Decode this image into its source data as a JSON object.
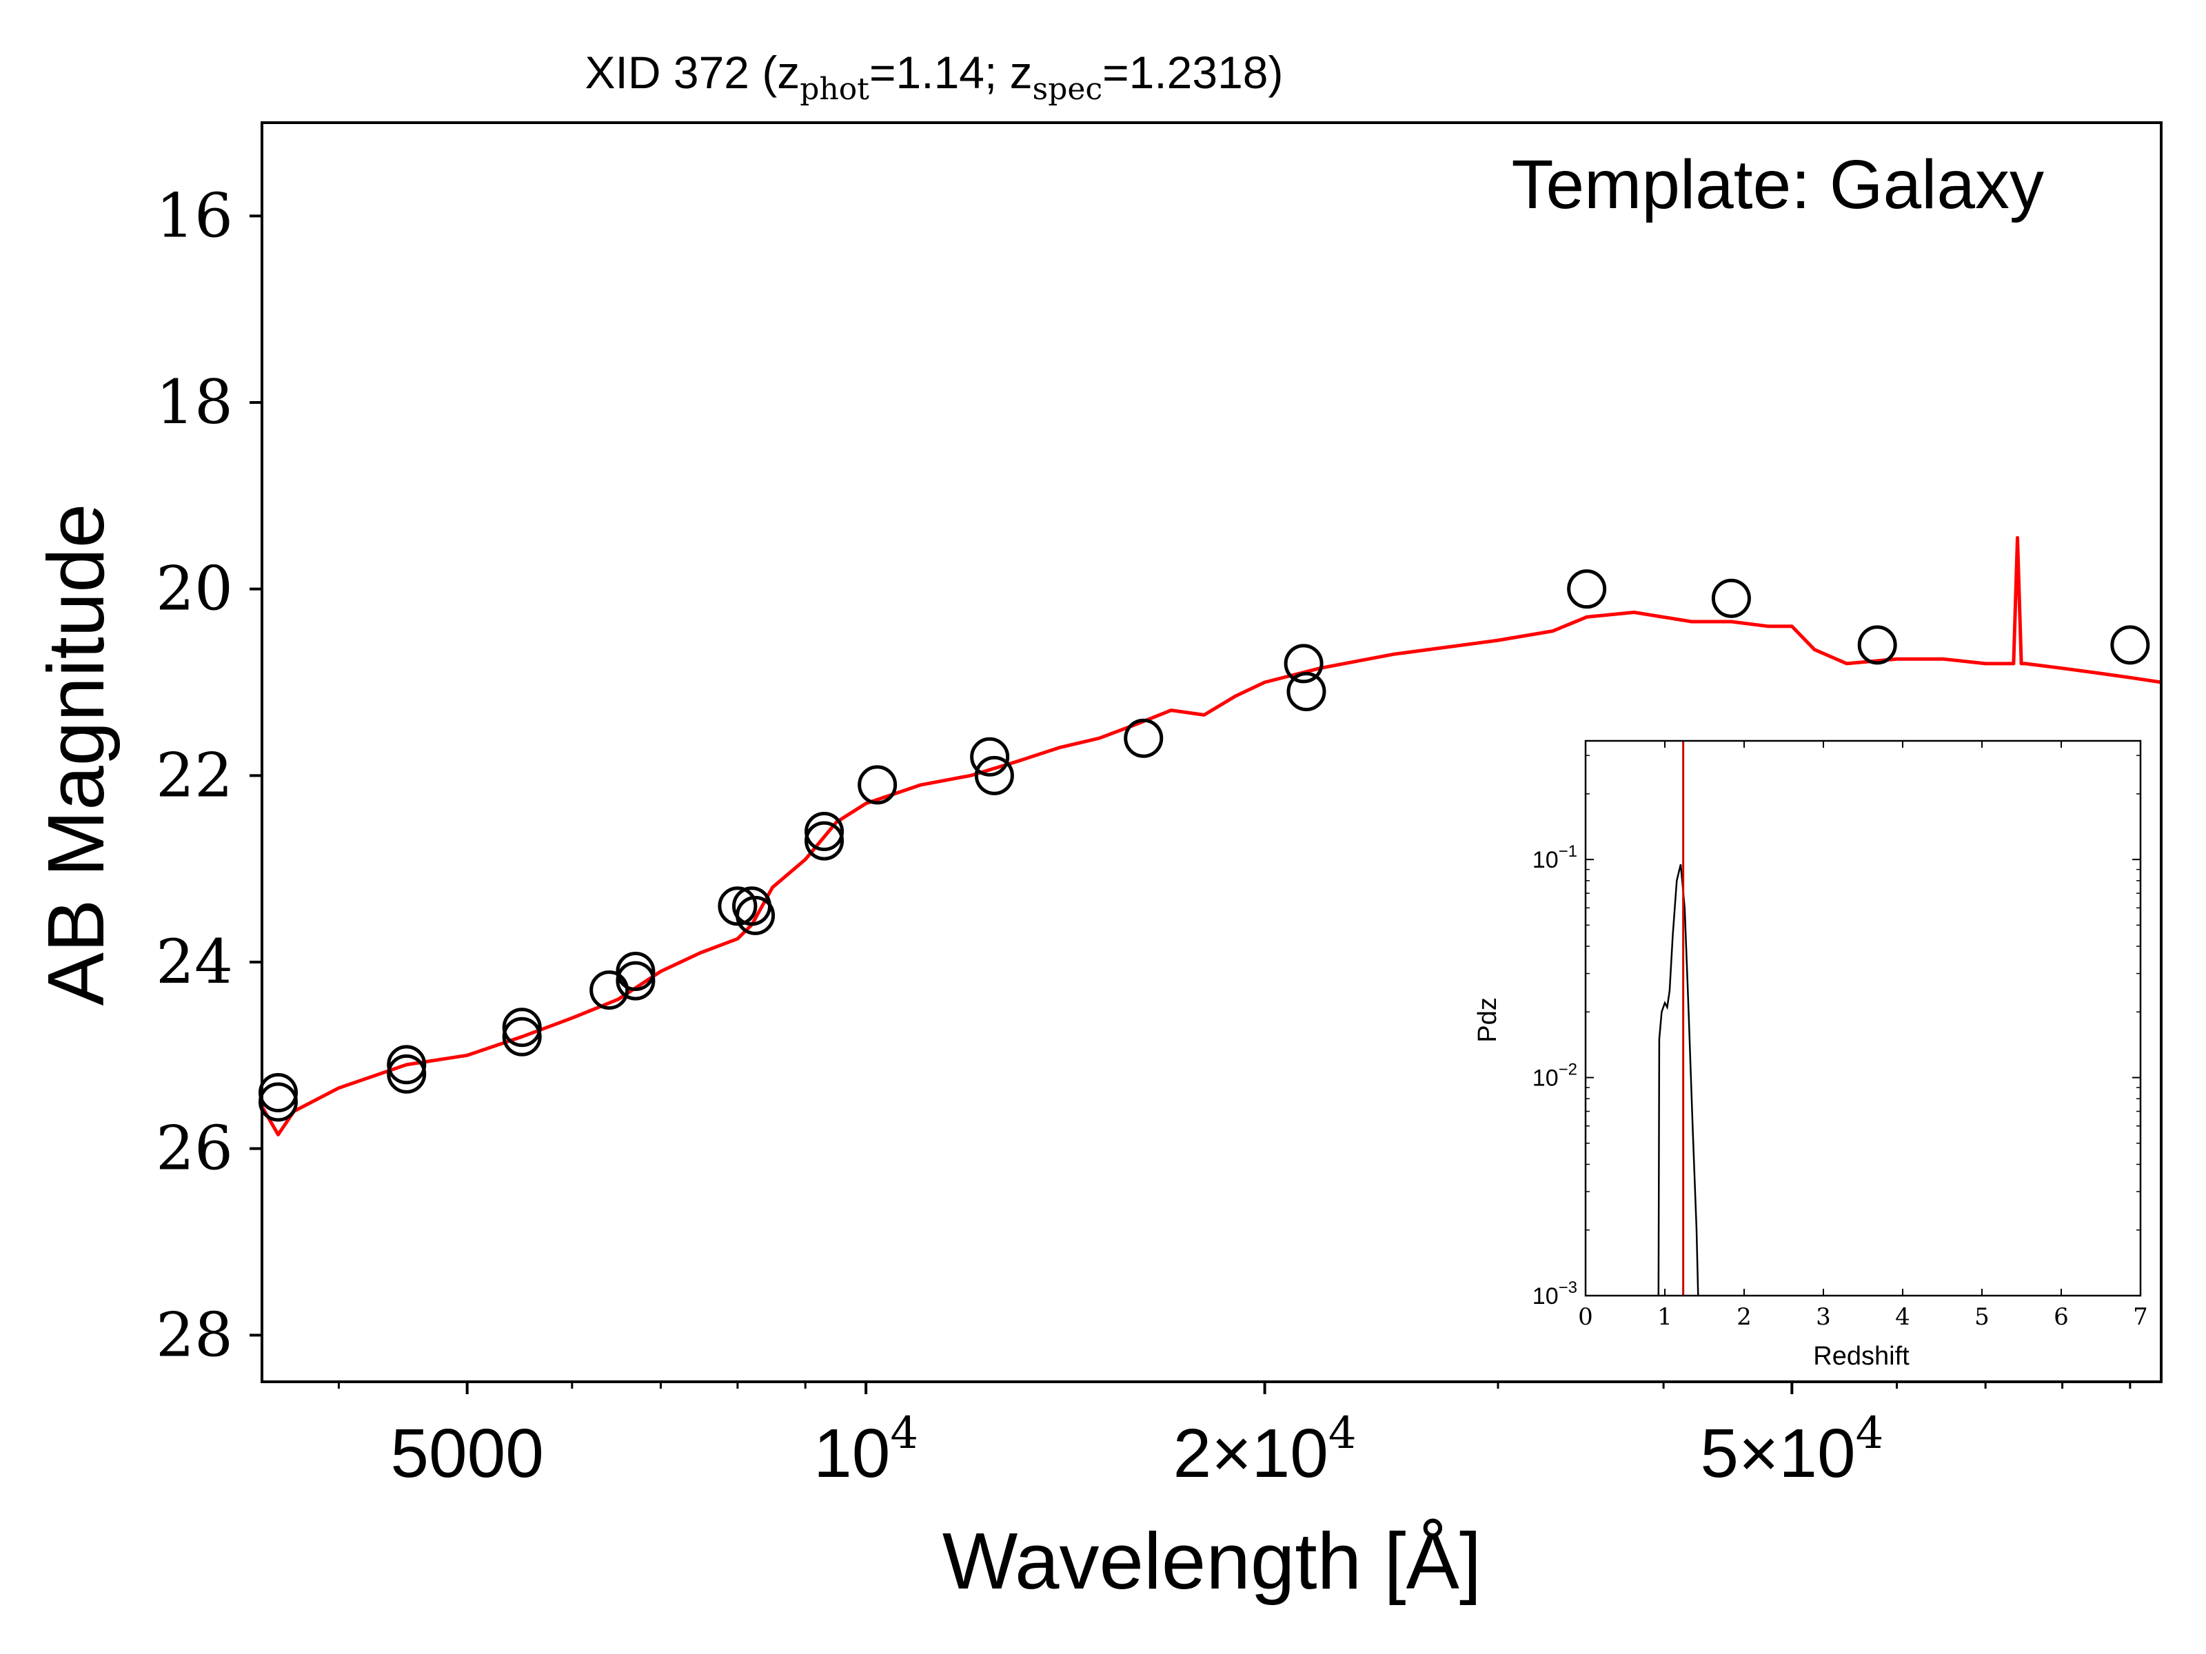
{
  "chart_data": [
    {
      "type": "scatter",
      "title_prefix": "XID 372 (z",
      "title_sub1": "phot",
      "title_mid": "=1.14; z",
      "title_sub2": "spec",
      "title_suffix": "=1.2318)",
      "annotation": "Template: Galaxy",
      "xlabel": "Wavelength [Å]",
      "ylabel": "AB Magnitude",
      "xscale": "log",
      "xlim": [
        3500,
        95000
      ],
      "ylim": [
        28.5,
        15
      ],
      "y_inverted": true,
      "x_ticks": [
        {
          "value": 5000,
          "main": "5000",
          "exp": ""
        },
        {
          "value": 10000,
          "main": "10",
          "exp": "4"
        },
        {
          "value": 20000,
          "main": "2×10",
          "exp": "4"
        },
        {
          "value": 50000,
          "main": "5×10",
          "exp": "4"
        }
      ],
      "x_minor_ticks": [
        4000,
        6000,
        7000,
        8000,
        9000,
        30000,
        40000,
        60000,
        70000,
        80000,
        90000
      ],
      "y_ticks": [
        "16",
        "18",
        "20",
        "22",
        "24",
        "26",
        "28"
      ],
      "series": [
        {
          "name": "",
          "type": "scatter",
          "marker": "open-circle",
          "color": "#000000",
          "x": [
            3600,
            3600,
            4500,
            4500,
            5500,
            5500,
            6400,
            6700,
            6700,
            8000,
            8200,
            8250,
            9300,
            9300,
            10200,
            12400,
            12500,
            16200,
            21400,
            21500,
            35000,
            45000,
            58000,
            90000
          ],
          "y": [
            25.4,
            25.5,
            25.1,
            25.2,
            24.7,
            24.8,
            24.3,
            24.1,
            24.2,
            23.4,
            23.4,
            23.5,
            22.6,
            22.7,
            22.1,
            21.8,
            22.0,
            21.6,
            20.8,
            21.1,
            20.0,
            20.1,
            20.6,
            20.6
          ]
        },
        {
          "name": "",
          "type": "line",
          "color": "#ff0000",
          "x": [
            3500,
            3600,
            3700,
            4000,
            4500,
            5000,
            5500,
            6000,
            6500,
            7000,
            7500,
            8000,
            8200,
            8500,
            9000,
            9500,
            10000,
            11000,
            12000,
            13000,
            14000,
            15000,
            16000,
            17000,
            18000,
            19000,
            20000,
            22000,
            25000,
            30000,
            33000,
            35000,
            38000,
            42000,
            45000,
            48000,
            50000,
            52000,
            55000,
            60000,
            65000,
            70000,
            73500,
            74000,
            74500,
            75000,
            80000,
            85000,
            90000,
            95000
          ],
          "y": [
            25.55,
            25.85,
            25.6,
            25.35,
            25.1,
            25.0,
            24.8,
            24.6,
            24.4,
            24.1,
            23.9,
            23.75,
            23.6,
            23.2,
            22.9,
            22.5,
            22.3,
            22.1,
            22.0,
            21.85,
            21.7,
            21.6,
            21.45,
            21.3,
            21.35,
            21.15,
            21.0,
            20.85,
            20.7,
            20.55,
            20.45,
            20.3,
            20.25,
            20.35,
            20.35,
            20.4,
            20.4,
            20.65,
            20.8,
            20.75,
            20.75,
            20.8,
            20.8,
            19.45,
            20.8,
            20.8,
            20.85,
            20.9,
            20.95,
            21.0
          ]
        }
      ]
    },
    {
      "type": "line",
      "title": "",
      "xlabel": "Redshift",
      "ylabel": "Pdz",
      "yscale": "log",
      "xlim": [
        0,
        7
      ],
      "ylim": [
        0.001,
        0.35
      ],
      "x_ticks": [
        "0",
        "1",
        "2",
        "3",
        "4",
        "5",
        "6",
        "7"
      ],
      "y_ticks": [
        {
          "value": 0.1,
          "main": "10",
          "exp": "−1"
        },
        {
          "value": 0.01,
          "main": "10",
          "exp": "−2"
        },
        {
          "value": 0.001,
          "main": "10",
          "exp": "−3"
        }
      ],
      "vline": {
        "x": 1.2318,
        "color": "#cc0000"
      },
      "series": [
        {
          "name": "",
          "color": "#000000",
          "x": [
            0.92,
            0.93,
            0.96,
            1.0,
            1.03,
            1.06,
            1.1,
            1.15,
            1.2,
            1.25,
            1.3,
            1.35,
            1.4,
            1.42
          ],
          "y": [
            0.001,
            0.015,
            0.02,
            0.022,
            0.021,
            0.025,
            0.045,
            0.08,
            0.095,
            0.06,
            0.02,
            0.006,
            0.002,
            0.001
          ]
        }
      ]
    }
  ]
}
